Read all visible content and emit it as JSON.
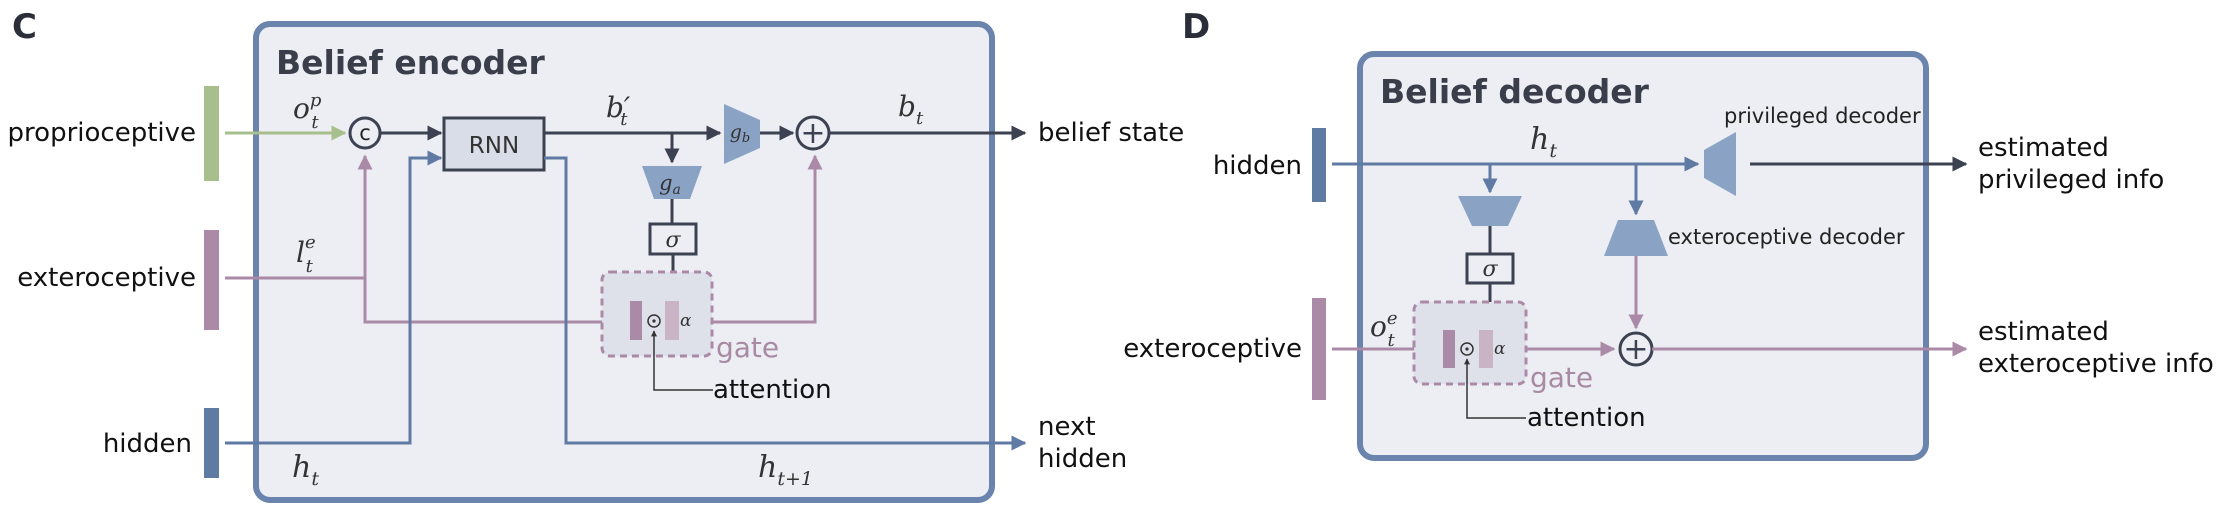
{
  "panel_c": {
    "letter": "C",
    "title": "Belief encoder",
    "inputs": {
      "proprioceptive": "proprioceptive",
      "exteroceptive": "exteroceptive",
      "hidden": "hidden"
    },
    "outputs": {
      "belief_state": "belief state",
      "next_line1": "next",
      "next_line2": "hidden"
    },
    "symbols": {
      "o_p": "o",
      "o_p_sup": "p",
      "o_p_sub": "t",
      "l_e": "l",
      "l_e_sup": "e",
      "l_e_sub": "t",
      "b_prime": "b′",
      "b_prime_sub": "t",
      "b": "b",
      "b_sub": "t",
      "h": "h",
      "h_sub": "t",
      "h_next": "h",
      "h_next_sub": "t+1",
      "g_a": "g",
      "g_a_sub": "a",
      "g_b": "g",
      "g_b_sub": "b",
      "sigma": "σ",
      "alpha": "α",
      "concat": "c",
      "plus": "+",
      "odot": "⊙"
    },
    "rnn_label": "RNN",
    "gate_label": "gate",
    "attention_label": "attention"
  },
  "panel_d": {
    "letter": "D",
    "title": "Belief decoder",
    "inputs": {
      "hidden": "hidden",
      "exteroceptive": "exteroceptive"
    },
    "outputs": {
      "privileged_line1": "estimated",
      "privileged_line2": "privileged info",
      "extero_line1": "estimated",
      "extero_line2": "exteroceptive info"
    },
    "symbols": {
      "h": "h",
      "h_sub": "t",
      "o_e": "o",
      "o_e_sup": "e",
      "o_e_sub": "t",
      "sigma": "σ",
      "alpha": "α",
      "plus": "+",
      "odot": "⊙"
    },
    "privileged_decoder_label": "privileged decoder",
    "exteroceptive_decoder_label": "exteroceptive decoder",
    "gate_label": "gate",
    "attention_label": "attention"
  },
  "colors": {
    "frame": "#6a84ad",
    "panel_fill": "#eceef4",
    "dark": "#3d4252",
    "proprio_green": "#a7bf8c",
    "extero_pink": "#ab8aa8",
    "hidden_blue": "#5f7aa3",
    "module_blue": "#8aa2c4",
    "gate_dash": "#ab8aa8"
  }
}
